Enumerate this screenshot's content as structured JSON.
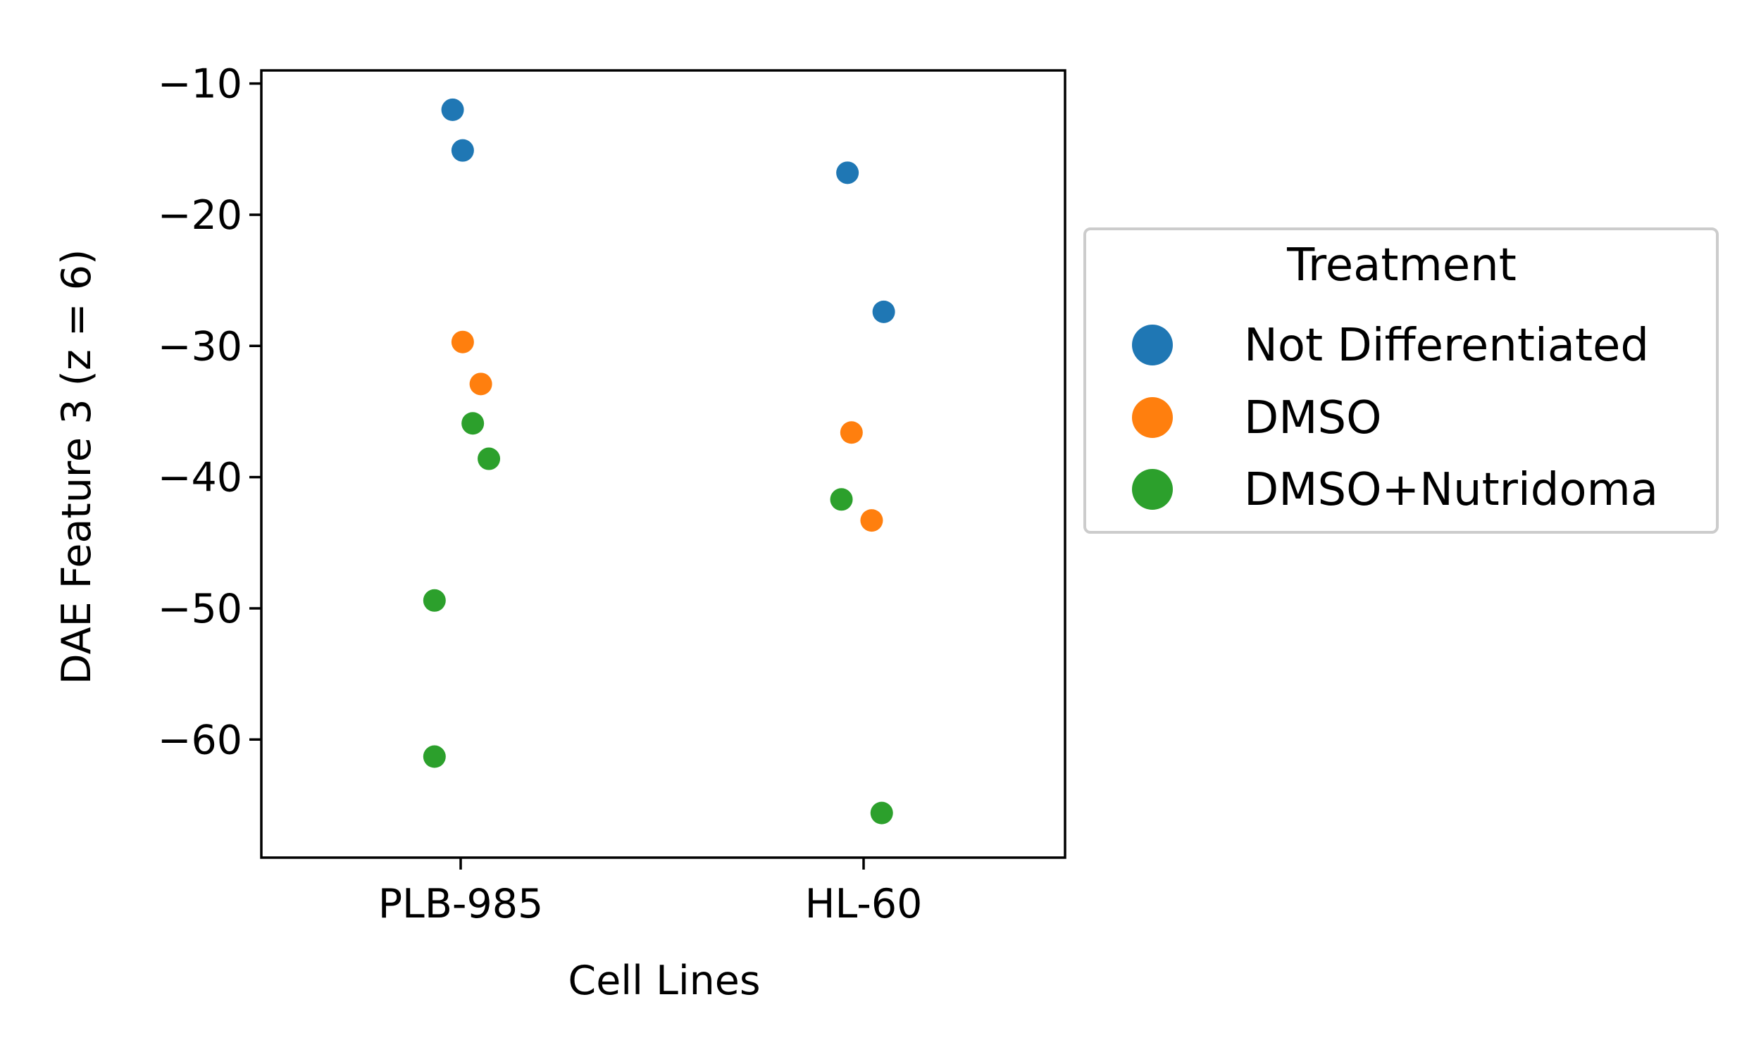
{
  "chart_data": {
    "type": "scatter",
    "title": "",
    "xlabel": "Cell Lines",
    "ylabel": "DAE Feature 3 (z = 6)",
    "categories": [
      "PLB-985",
      "HL-60"
    ],
    "ylim": [
      -69,
      -9
    ],
    "yticks": [
      -10,
      -20,
      -30,
      -40,
      -50,
      -60
    ],
    "ytick_labels": [
      "−10",
      "−20",
      "−30",
      "−40",
      "−50",
      "−60"
    ],
    "grid": false,
    "legend": {
      "title": "Treatment",
      "placement": "outside-right"
    },
    "series": [
      {
        "name": "Not Differentiated",
        "color": "#1f77b4",
        "points": [
          {
            "category": "PLB-985",
            "jitter": -0.02,
            "y": -12.0
          },
          {
            "category": "PLB-985",
            "jitter": 0.005,
            "y": -15.1
          },
          {
            "category": "HL-60",
            "jitter": -0.04,
            "y": -16.8
          },
          {
            "category": "HL-60",
            "jitter": 0.05,
            "y": -27.4
          }
        ]
      },
      {
        "name": "DMSO",
        "color": "#ff7f0e",
        "points": [
          {
            "category": "PLB-985",
            "jitter": 0.005,
            "y": -29.7
          },
          {
            "category": "PLB-985",
            "jitter": 0.05,
            "y": -32.9
          },
          {
            "category": "HL-60",
            "jitter": -0.03,
            "y": -36.6
          },
          {
            "category": "HL-60",
            "jitter": 0.02,
            "y": -43.3
          }
        ]
      },
      {
        "name": "DMSO+Nutridoma",
        "color": "#2ca02c",
        "points": [
          {
            "category": "PLB-985",
            "jitter": 0.03,
            "y": -35.9
          },
          {
            "category": "PLB-985",
            "jitter": 0.07,
            "y": -38.6
          },
          {
            "category": "PLB-985",
            "jitter": -0.065,
            "y": -49.4
          },
          {
            "category": "PLB-985",
            "jitter": -0.065,
            "y": -61.3
          },
          {
            "category": "HL-60",
            "jitter": -0.055,
            "y": -41.7
          },
          {
            "category": "HL-60",
            "jitter": 0.045,
            "y": -65.6
          }
        ]
      }
    ]
  }
}
